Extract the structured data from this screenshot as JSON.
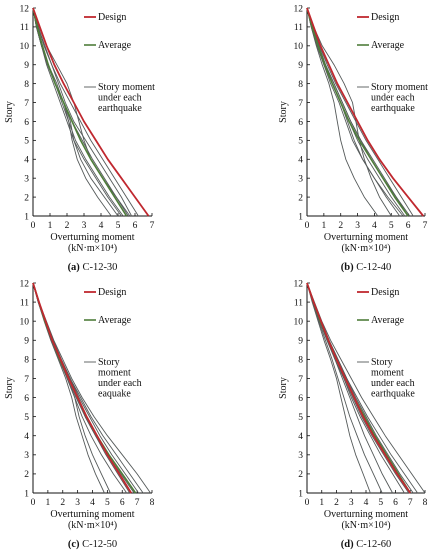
{
  "colors": {
    "design": "#c0282f",
    "average": "#4e7d3a",
    "records": "#555a5a",
    "axis": "#111111"
  },
  "chart_data": [
    {
      "type": "line",
      "caption_letter": "(a)",
      "caption_text": "C-12-30",
      "xlabel": "Overturning moment",
      "xlabel_unit": "(kN·m×10⁴)",
      "ylabel": "Story",
      "xlim": [
        0,
        7
      ],
      "ylim": [
        1,
        12
      ],
      "xticks": [
        0,
        1,
        2,
        3,
        4,
        5,
        6,
        7
      ],
      "yticks": [
        1,
        2,
        3,
        4,
        5,
        6,
        7,
        8,
        9,
        10,
        11,
        12
      ],
      "legend": [
        "Design",
        "Average",
        "Story moment under each earthquake"
      ],
      "legend_lines": [
        [
          "Design"
        ],
        [
          "Average"
        ],
        [
          "Story moment",
          "under each",
          "earthquake"
        ]
      ],
      "y": [
        1,
        2,
        3,
        4,
        5,
        6,
        7,
        8,
        9,
        10,
        11,
        12
      ],
      "design": [
        6.8,
        6.0,
        5.2,
        4.4,
        3.7,
        3.0,
        2.4,
        1.8,
        1.25,
        0.8,
        0.4,
        0
      ],
      "average": [
        5.5,
        4.8,
        4.1,
        3.4,
        2.8,
        2.3,
        1.8,
        1.3,
        0.9,
        0.55,
        0.25,
        0
      ],
      "records": [
        [
          5.3,
          4.5,
          3.8,
          3.1,
          2.5,
          2.1,
          1.7,
          1.3,
          0.9,
          0.5,
          0.2,
          0
        ],
        [
          5.8,
          5.2,
          4.5,
          3.8,
          3.1,
          2.4,
          1.9,
          1.5,
          1.1,
          0.65,
          0.3,
          0
        ],
        [
          5.0,
          4.2,
          3.4,
          2.8,
          2.4,
          2.2,
          1.8,
          1.3,
          0.85,
          0.5,
          0.2,
          0
        ],
        [
          5.6,
          4.9,
          4.2,
          3.5,
          2.9,
          2.3,
          1.8,
          1.3,
          0.9,
          0.55,
          0.25,
          0
        ],
        [
          5.2,
          4.4,
          3.7,
          3.0,
          2.4,
          2.0,
          1.6,
          1.2,
          0.8,
          0.5,
          0.2,
          0
        ],
        [
          6.2,
          5.5,
          4.8,
          4.1,
          3.4,
          2.8,
          2.2,
          1.6,
          1.1,
          0.7,
          0.3,
          0
        ],
        [
          5.7,
          4.9,
          4.1,
          3.4,
          3.0,
          2.7,
          2.4,
          2.0,
          1.4,
          0.8,
          0.35,
          0
        ],
        [
          4.6,
          3.8,
          3.1,
          2.6,
          2.3,
          2.1,
          1.8,
          1.4,
          0.9,
          0.5,
          0.2,
          0
        ]
      ]
    },
    {
      "type": "line",
      "caption_letter": "(b)",
      "caption_text": "C-12-40",
      "xlabel": "Overturning moment",
      "xlabel_unit": "(kN·m×10⁴)",
      "ylabel": "Story",
      "xlim": [
        0,
        7
      ],
      "ylim": [
        1,
        12
      ],
      "xticks": [
        0,
        1,
        2,
        3,
        4,
        5,
        6,
        7
      ],
      "yticks": [
        1,
        2,
        3,
        4,
        5,
        6,
        7,
        8,
        9,
        10,
        11,
        12
      ],
      "legend": [
        "Design",
        "Average",
        "Story moment under each earthquake"
      ],
      "legend_lines": [
        [
          "Design"
        ],
        [
          "Average"
        ],
        [
          "Story moment",
          "under each",
          "earthquake"
        ]
      ],
      "y": [
        1,
        2,
        3,
        4,
        5,
        6,
        7,
        8,
        9,
        10,
        11,
        12
      ],
      "design": [
        6.9,
        6.0,
        5.1,
        4.3,
        3.6,
        3.0,
        2.4,
        1.8,
        1.3,
        0.8,
        0.4,
        0
      ],
      "average": [
        6.0,
        5.2,
        4.5,
        3.8,
        3.1,
        2.5,
        2.0,
        1.5,
        1.05,
        0.65,
        0.3,
        0
      ],
      "records": [
        [
          5.8,
          5.0,
          4.3,
          3.6,
          3.0,
          2.5,
          2.0,
          1.5,
          1.05,
          0.65,
          0.3,
          0
        ],
        [
          6.3,
          5.6,
          4.9,
          4.2,
          3.5,
          2.9,
          2.3,
          1.7,
          1.2,
          0.75,
          0.35,
          0
        ],
        [
          5.5,
          4.7,
          4.0,
          3.3,
          2.7,
          2.3,
          1.9,
          1.4,
          1.0,
          0.6,
          0.3,
          0
        ],
        [
          6.1,
          5.3,
          4.6,
          3.9,
          3.2,
          2.6,
          2.1,
          1.6,
          1.1,
          0.7,
          0.3,
          0
        ],
        [
          4.2,
          3.4,
          2.8,
          2.3,
          2.0,
          1.8,
          1.6,
          1.3,
          0.9,
          0.55,
          0.25,
          0
        ],
        [
          5.0,
          4.3,
          3.8,
          3.4,
          3.1,
          2.9,
          2.7,
          2.2,
          1.6,
          0.9,
          0.4,
          0
        ],
        [
          5.7,
          4.8,
          4.0,
          3.3,
          2.8,
          2.4,
          2.0,
          1.5,
          1.0,
          0.6,
          0.25,
          0
        ],
        [
          6.0,
          5.3,
          4.5,
          3.8,
          3.2,
          2.6,
          2.1,
          1.6,
          1.1,
          0.7,
          0.3,
          0
        ]
      ]
    },
    {
      "type": "line",
      "caption_letter": "(c)",
      "caption_text": "C-12-50",
      "xlabel": "Overturning moment",
      "xlabel_unit": "(kN·m×10⁴)",
      "ylabel": "Story",
      "xlim": [
        0,
        8
      ],
      "ylim": [
        1,
        12
      ],
      "xticks": [
        0,
        1,
        2,
        3,
        4,
        5,
        6,
        7,
        8
      ],
      "yticks": [
        1,
        2,
        3,
        4,
        5,
        6,
        7,
        8,
        9,
        10,
        11,
        12
      ],
      "legend": [
        "Design",
        "Average",
        "Story moment under each eaquake"
      ],
      "legend_lines": [
        [
          "Design"
        ],
        [
          "Average"
        ],
        [
          "Story",
          "moment",
          "under each",
          "eaquake"
        ]
      ],
      "y": [
        1,
        2,
        3,
        4,
        5,
        6,
        7,
        8,
        9,
        10,
        11,
        12
      ],
      "design": [
        6.6,
        5.8,
        5.0,
        4.3,
        3.6,
        3.0,
        2.4,
        1.85,
        1.3,
        0.85,
        0.4,
        0
      ],
      "average": [
        6.9,
        6.0,
        5.1,
        4.3,
        3.6,
        3.0,
        2.4,
        1.8,
        1.3,
        0.8,
        0.4,
        0
      ],
      "records": [
        [
          7.4,
          6.5,
          5.6,
          4.7,
          3.9,
          3.2,
          2.5,
          1.9,
          1.35,
          0.85,
          0.4,
          0
        ],
        [
          6.5,
          5.7,
          4.9,
          4.2,
          3.5,
          2.9,
          2.3,
          1.8,
          1.3,
          0.8,
          0.4,
          0
        ],
        [
          7.9,
          7.0,
          6.0,
          5.0,
          4.1,
          3.3,
          2.6,
          2.0,
          1.4,
          0.9,
          0.4,
          0
        ],
        [
          5.2,
          4.6,
          4.0,
          3.5,
          3.1,
          2.8,
          2.3,
          1.8,
          1.25,
          0.8,
          0.35,
          0
        ],
        [
          6.8,
          5.9,
          5.0,
          4.2,
          3.5,
          3.0,
          2.5,
          1.9,
          1.35,
          0.85,
          0.4,
          0
        ],
        [
          7.1,
          6.2,
          5.3,
          4.5,
          3.8,
          3.1,
          2.5,
          1.9,
          1.35,
          0.85,
          0.4,
          0
        ],
        [
          6.3,
          5.4,
          4.6,
          3.9,
          3.3,
          2.8,
          2.3,
          1.75,
          1.25,
          0.8,
          0.35,
          0
        ],
        [
          4.8,
          4.2,
          3.7,
          3.3,
          2.9,
          2.6,
          2.2,
          1.7,
          1.2,
          0.75,
          0.35,
          0
        ]
      ]
    },
    {
      "type": "line",
      "caption_letter": "(d)",
      "caption_text": "C-12-60",
      "xlabel": "Overturning moment",
      "xlabel_unit": "(kN·m×10⁴)",
      "ylabel": "Story",
      "xlim": [
        0,
        8
      ],
      "ylim": [
        1,
        12
      ],
      "xticks": [
        0,
        1,
        2,
        3,
        4,
        5,
        6,
        7,
        8
      ],
      "yticks": [
        1,
        2,
        3,
        4,
        5,
        6,
        7,
        8,
        9,
        10,
        11,
        12
      ],
      "legend": [
        "Design",
        "Average",
        "Story moment under each earthquake"
      ],
      "legend_lines": [
        [
          "Design"
        ],
        [
          "Average"
        ],
        [
          "Story",
          "moment",
          "under each",
          "earthquake"
        ]
      ],
      "y": [
        1,
        2,
        3,
        4,
        5,
        6,
        7,
        8,
        9,
        10,
        11,
        12
      ],
      "design": [
        7.0,
        6.1,
        5.3,
        4.5,
        3.8,
        3.2,
        2.6,
        2.0,
        1.45,
        0.95,
        0.45,
        0
      ],
      "average": [
        7.0,
        6.2,
        5.4,
        4.6,
        3.9,
        3.2,
        2.6,
        2.0,
        1.45,
        0.9,
        0.45,
        0
      ],
      "records": [
        [
          7.5,
          6.6,
          5.7,
          4.9,
          4.1,
          3.4,
          2.7,
          2.1,
          1.5,
          0.95,
          0.45,
          0
        ],
        [
          6.6,
          5.8,
          5.0,
          4.3,
          3.6,
          3.0,
          2.5,
          1.9,
          1.4,
          0.9,
          0.4,
          0
        ],
        [
          8.0,
          7.1,
          6.2,
          5.3,
          4.5,
          3.7,
          3.0,
          2.3,
          1.6,
          1.0,
          0.5,
          0
        ],
        [
          5.1,
          4.5,
          3.9,
          3.4,
          2.9,
          2.5,
          2.1,
          1.7,
          1.25,
          0.8,
          0.4,
          0
        ],
        [
          6.9,
          6.0,
          5.2,
          4.4,
          3.7,
          3.1,
          2.5,
          2.0,
          1.45,
          0.9,
          0.45,
          0
        ],
        [
          7.2,
          6.3,
          5.5,
          4.7,
          4.0,
          3.3,
          2.7,
          2.1,
          1.5,
          0.95,
          0.45,
          0
        ],
        [
          5.8,
          5.1,
          4.5,
          3.9,
          3.4,
          2.9,
          2.4,
          1.9,
          1.35,
          0.85,
          0.4,
          0
        ],
        [
          4.3,
          3.8,
          3.3,
          2.9,
          2.6,
          2.3,
          2.0,
          1.6,
          1.15,
          0.75,
          0.35,
          0
        ]
      ]
    }
  ]
}
